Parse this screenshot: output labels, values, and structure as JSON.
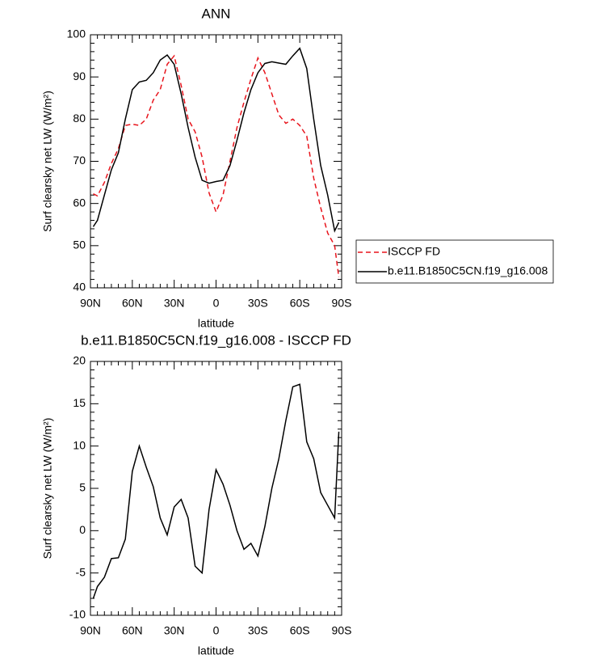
{
  "chart_data": [
    {
      "type": "line",
      "title": "ANN",
      "xlabel": "latitude",
      "ylabel": "Surf clearsky net LW (W/m²)",
      "x": [
        88,
        85,
        80,
        75,
        70,
        65,
        60,
        55,
        50,
        45,
        40,
        35,
        30,
        25,
        20,
        15,
        10,
        5,
        0,
        -5,
        -10,
        -15,
        -20,
        -25,
        -30,
        -35,
        -40,
        -45,
        -50,
        -55,
        -60,
        -65,
        -70,
        -75,
        -80,
        -85,
        -88
      ],
      "series": [
        {
          "name": "ISCCP FD",
          "color": "#e8141c",
          "dashed": true,
          "values": [
            62.3,
            61.8,
            65,
            69.5,
            73,
            78.5,
            78.8,
            78.5,
            80,
            84.5,
            87,
            93,
            95,
            88,
            80,
            77,
            71,
            62.5,
            58,
            62,
            70,
            78,
            84,
            89.5,
            94.5,
            91,
            86,
            81,
            79,
            80,
            78.5,
            76,
            66,
            59,
            53,
            50,
            42.5
          ]
        },
        {
          "name": "b.e11.B1850C5CN.f19_g16.008",
          "color": "#000000",
          "dashed": false,
          "values": [
            54.5,
            56,
            62,
            68,
            72,
            80,
            87,
            88.8,
            89.2,
            91,
            94,
            95.2,
            93,
            86,
            78,
            71,
            65.5,
            64.8,
            65.2,
            65.5,
            69,
            75,
            81.5,
            87,
            91,
            93.2,
            93.6,
            93.3,
            93,
            95,
            96.8,
            92,
            80,
            69,
            62,
            53.5,
            55.5
          ]
        }
      ],
      "xlim": [
        90,
        -90
      ],
      "xticks": [
        {
          "value": 90,
          "label": "90N"
        },
        {
          "value": 60,
          "label": "60N"
        },
        {
          "value": 30,
          "label": "30N"
        },
        0,
        {
          "value": -30,
          "label": "30S"
        },
        {
          "value": -60,
          "label": "60S"
        },
        {
          "value": -90,
          "label": "90S"
        }
      ],
      "ylim": [
        40,
        100
      ],
      "yticks": [
        40,
        50,
        60,
        70,
        80,
        90,
        100
      ],
      "legend": "right"
    },
    {
      "type": "line",
      "title": "b.e11.B1850C5CN.f19_g16.008 - ISCCP FD",
      "xlabel": "latitude",
      "ylabel": "Surf clearsky net LW (W/m²)",
      "x": [
        88,
        85,
        80,
        75,
        70,
        65,
        60,
        55,
        50,
        45,
        40,
        35,
        30,
        25,
        20,
        15,
        10,
        5,
        0,
        -5,
        -10,
        -15,
        -20,
        -25,
        -30,
        -35,
        -40,
        -45,
        -50,
        -55,
        -60,
        -65,
        -70,
        -75,
        -80,
        -85,
        -88
      ],
      "series": [
        {
          "color": "#000000",
          "dashed": false,
          "values": [
            -8,
            -6.6,
            -5.5,
            -3.3,
            -3.2,
            -1,
            7,
            10,
            7.5,
            5.2,
            1.5,
            -0.5,
            2.8,
            3.7,
            1.5,
            -4.2,
            -5,
            2.5,
            7.2,
            5.5,
            3,
            0,
            -2.2,
            -1.5,
            -3,
            0.5,
            5,
            8.5,
            13,
            17,
            17.3,
            10.5,
            8.5,
            4.5,
            3,
            1.5,
            11.7
          ]
        }
      ],
      "xlim": [
        90,
        -90
      ],
      "xticks": [
        {
          "value": 90,
          "label": "90N"
        },
        {
          "value": 60,
          "label": "60N"
        },
        {
          "value": 30,
          "label": "30N"
        },
        0,
        {
          "value": -30,
          "label": "30S"
        },
        {
          "value": -60,
          "label": "60S"
        },
        {
          "value": -90,
          "label": "90S"
        }
      ],
      "ylim": [
        -10,
        20
      ],
      "yticks": [
        -10,
        -5,
        0,
        5,
        10,
        15,
        20
      ]
    }
  ]
}
